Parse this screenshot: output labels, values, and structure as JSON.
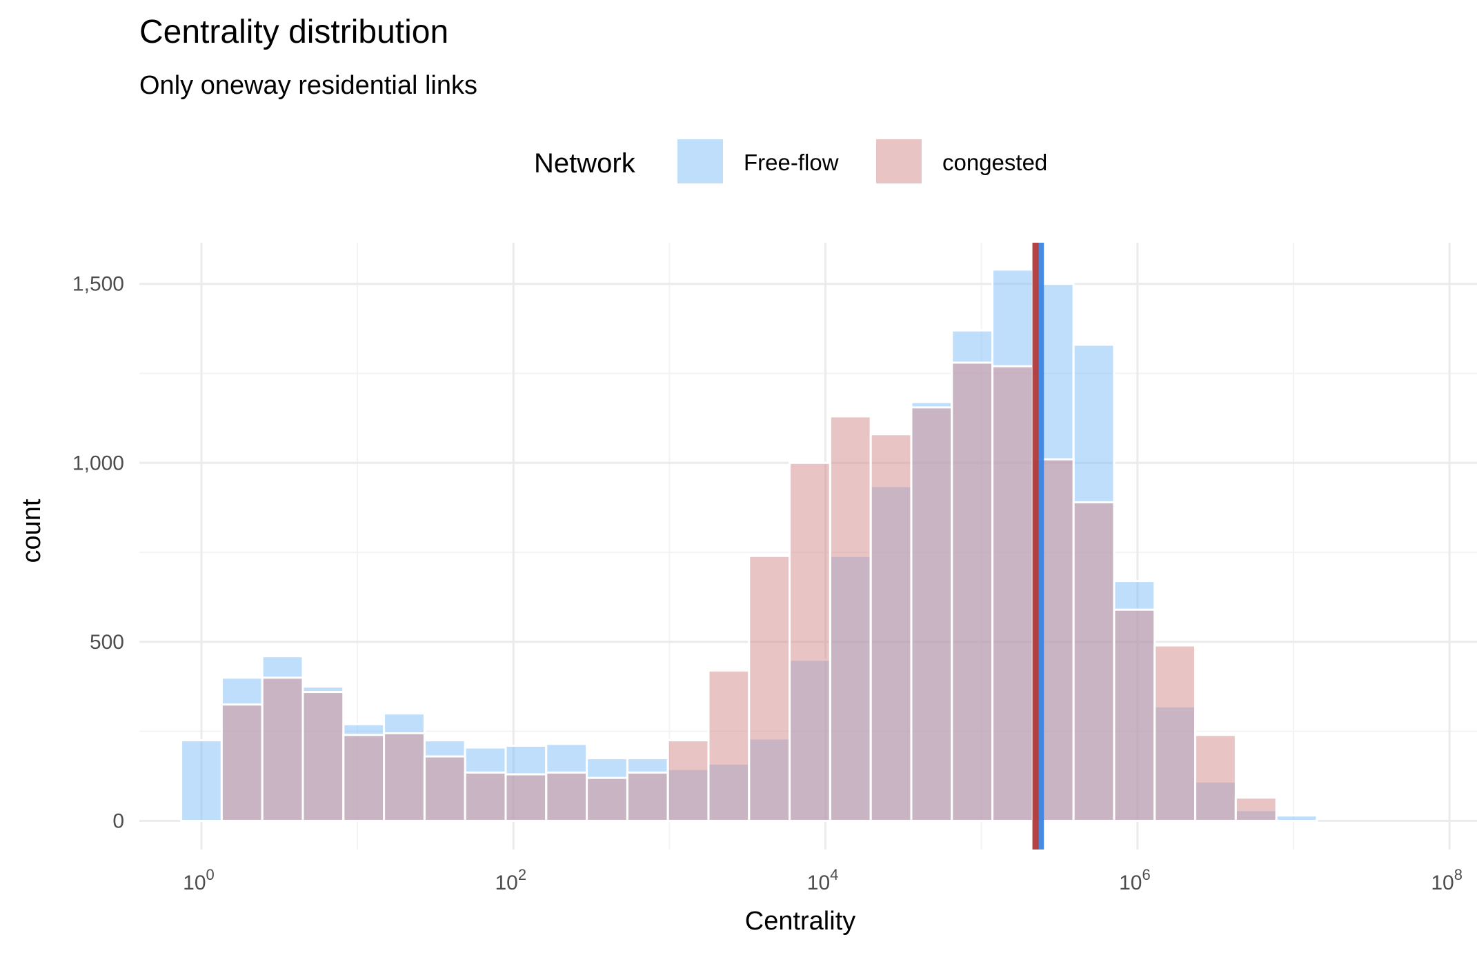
{
  "chart_data": {
    "type": "bar",
    "title": "Centrality distribution",
    "subtitle": "Only oneway residential links",
    "xlabel": "Centrality",
    "ylabel": "count",
    "x_scale": "log10",
    "xlim": [
      0.4,
      150000000
    ],
    "ylim": [
      -80,
      1615
    ],
    "x_ticks": [
      1,
      100,
      10000,
      1000000,
      100000000
    ],
    "x_tick_labels": [
      {
        "base": "10",
        "exp": "0"
      },
      {
        "base": "10",
        "exp": "2"
      },
      {
        "base": "10",
        "exp": "4"
      },
      {
        "base": "10",
        "exp": "6"
      },
      {
        "base": "10",
        "exp": "8"
      }
    ],
    "y_ticks": [
      0,
      500,
      1000,
      1500
    ],
    "y_tick_labels": [
      "0",
      "500",
      "1,000",
      "1,500"
    ],
    "grid": true,
    "legend": {
      "title": "Network",
      "position": "top"
    },
    "bins": {
      "log10_start": -0.13,
      "log10_width": 0.26,
      "count": 30
    },
    "series": [
      {
        "name": "Free-flow",
        "color": "#7ebef8",
        "values": [
          225,
          400,
          460,
          375,
          270,
          300,
          225,
          205,
          210,
          215,
          175,
          175,
          145,
          160,
          230,
          450,
          740,
          935,
          1170,
          1370,
          1540,
          1500,
          1330,
          670,
          320,
          110,
          30,
          15,
          0,
          0
        ]
      },
      {
        "name": "congested",
        "color": "#d4898c",
        "values": [
          0,
          325,
          400,
          360,
          240,
          245,
          180,
          135,
          130,
          135,
          120,
          135,
          225,
          420,
          740,
          1000,
          1130,
          1080,
          1155,
          1280,
          1270,
          1010,
          890,
          590,
          490,
          240,
          65,
          0,
          0,
          0
        ]
      }
    ],
    "overlap_color": "#b09db1",
    "vlines": [
      {
        "series": "Free-flow",
        "x": 240000,
        "color": "#3d85e0"
      },
      {
        "series": "congested",
        "x": 222000,
        "color": "#b03a3a"
      }
    ]
  }
}
